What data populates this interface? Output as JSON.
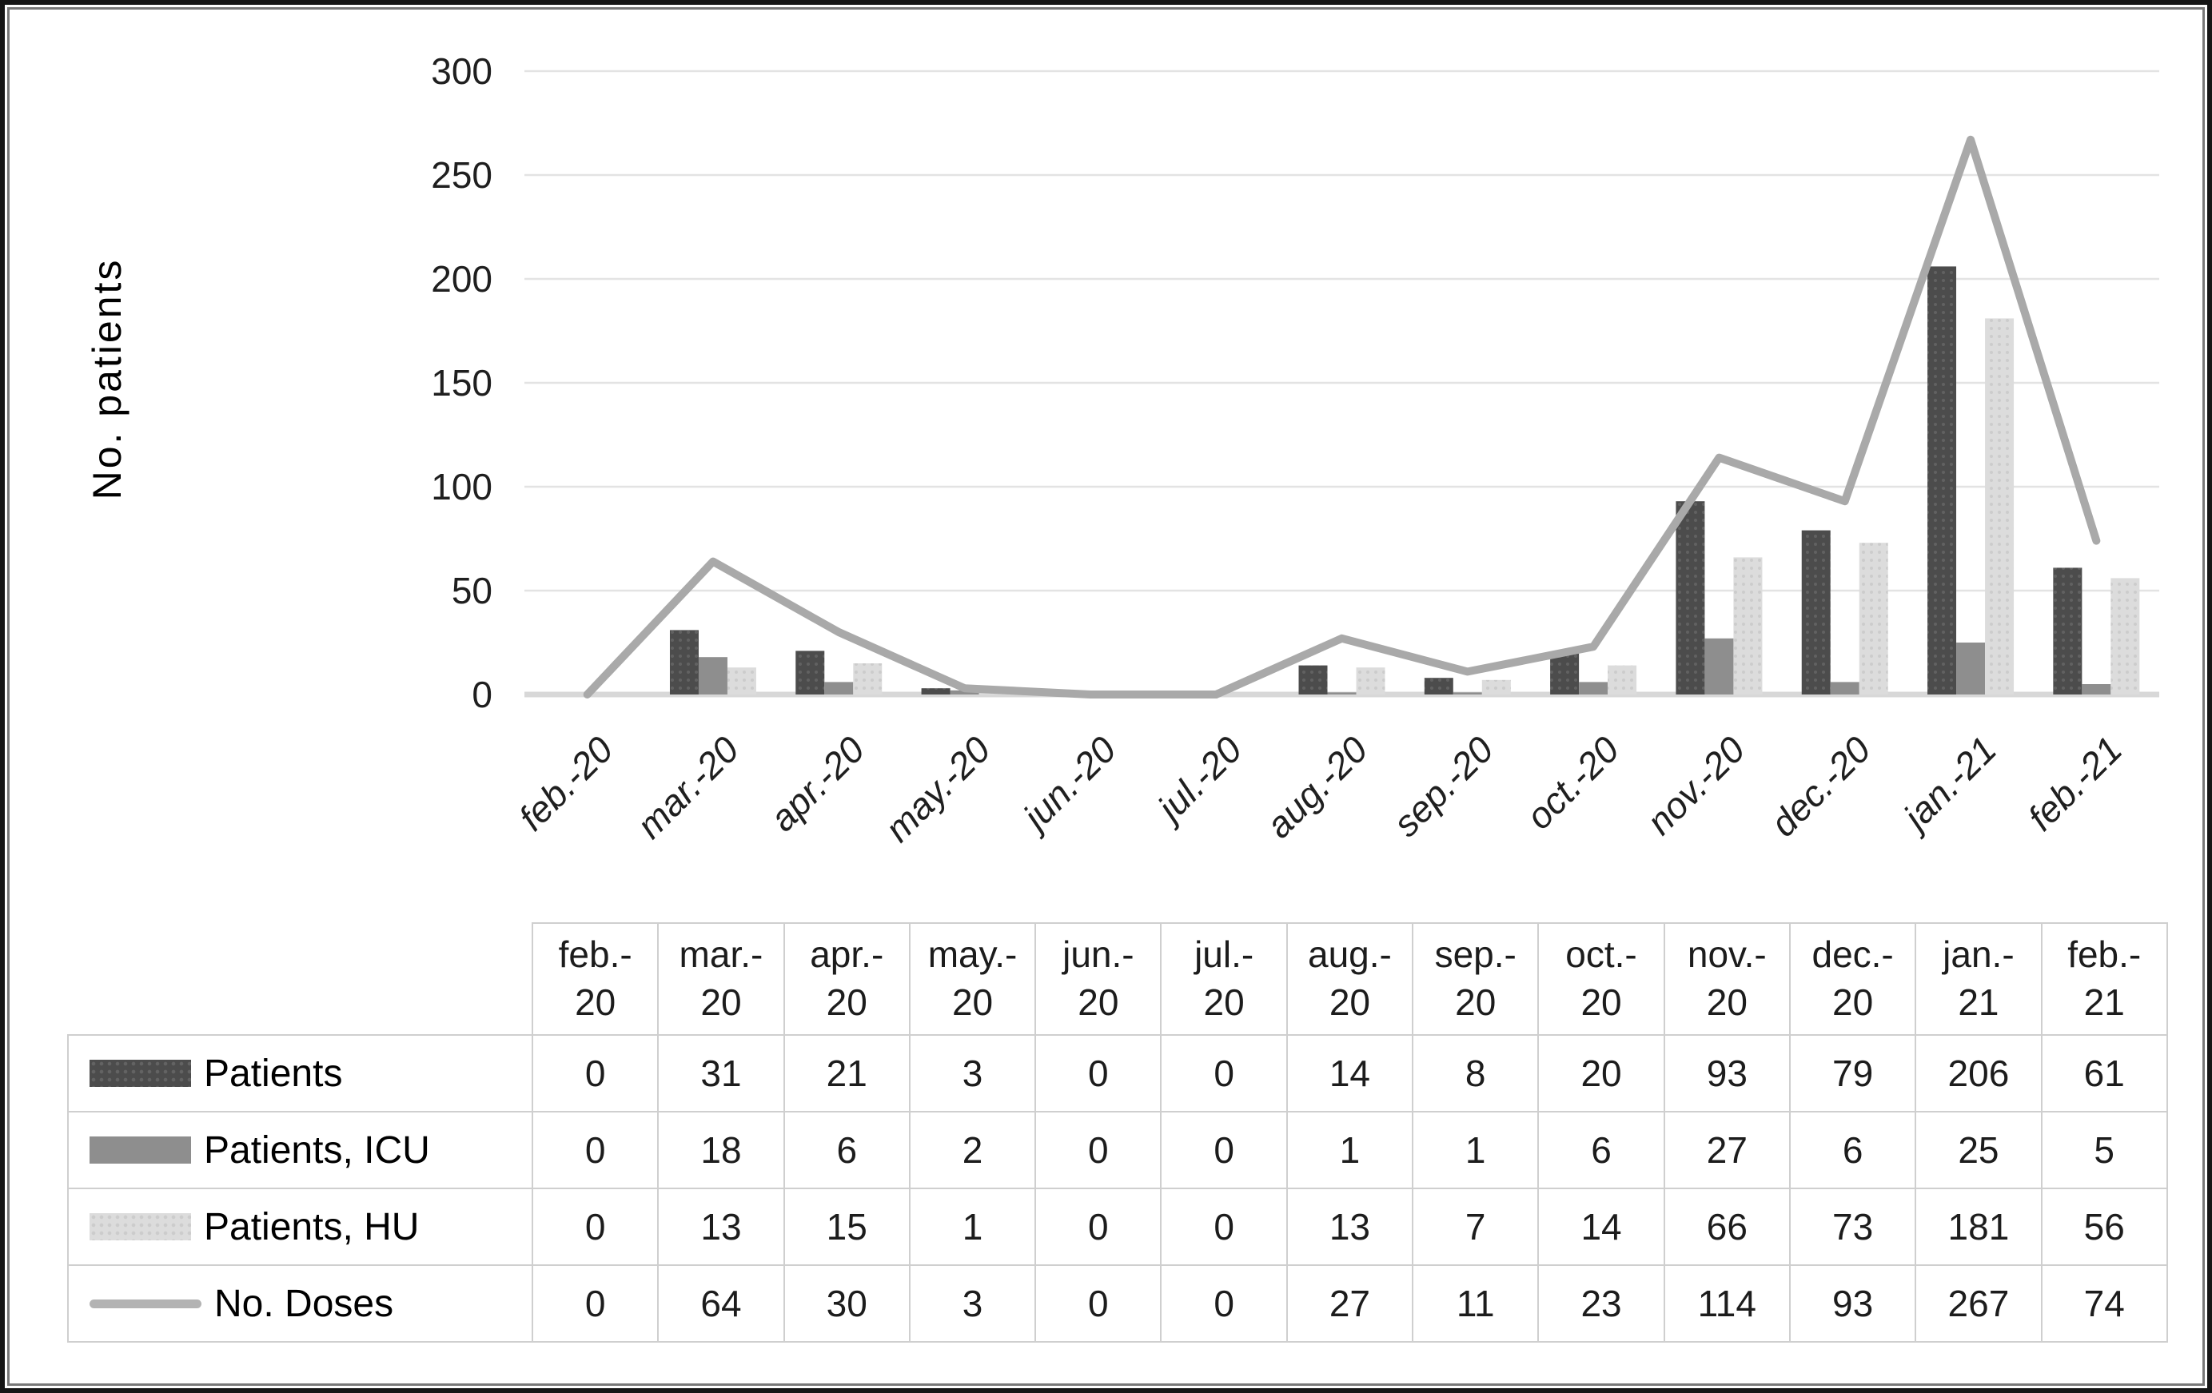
{
  "figure": {
    "y_axis_title": "No. patients"
  },
  "chart_data": {
    "type": "bar+line combo",
    "title": "",
    "xlabel": "",
    "ylabel": "No. patients",
    "ylim": [
      0,
      300
    ],
    "ytick_step": 50,
    "grid": "horizontal",
    "legend_position": "row headers of data table below chart",
    "categories": [
      "feb.-20",
      "mar.-20",
      "apr.-20",
      "may.-20",
      "jun.-20",
      "jul.-20",
      "aug.-20",
      "sep.-20",
      "oct.-20",
      "nov.-20",
      "dec.-20",
      "jan.-21",
      "feb.-21"
    ],
    "series": [
      {
        "name": "Patients",
        "type": "bar",
        "color": "#4c4c4c",
        "texture": "dotted",
        "values": [
          0,
          31,
          21,
          3,
          0,
          0,
          14,
          8,
          20,
          93,
          79,
          206,
          61
        ]
      },
      {
        "name": "Patients, ICU",
        "type": "bar",
        "color": "#8e8e8e",
        "texture": "solid",
        "values": [
          0,
          18,
          6,
          2,
          0,
          0,
          1,
          1,
          6,
          27,
          6,
          25,
          5
        ]
      },
      {
        "name": "Patients, HU",
        "type": "bar",
        "color": "#dcdcdc",
        "texture": "dotted",
        "values": [
          0,
          13,
          15,
          1,
          0,
          0,
          13,
          7,
          14,
          66,
          73,
          181,
          56
        ]
      },
      {
        "name": "No. Doses",
        "type": "line",
        "color": "#a9a9a9",
        "texture": "solid",
        "values": [
          0,
          64,
          30,
          3,
          0,
          0,
          27,
          11,
          23,
          114,
          93,
          267,
          74
        ]
      }
    ]
  }
}
